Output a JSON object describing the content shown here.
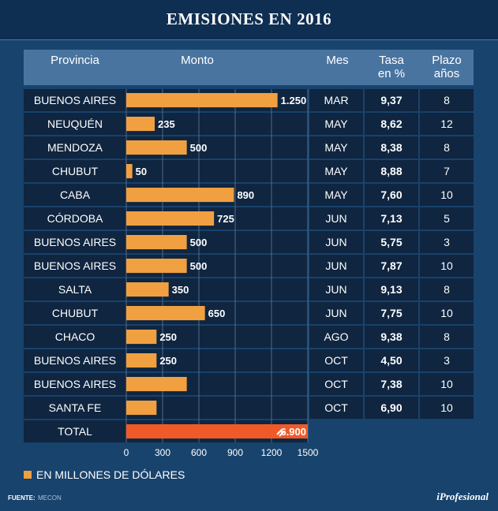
{
  "title": "EMISIONES EN 2016",
  "headers": {
    "provincia": "Provincia",
    "monto": "Monto",
    "mes": "Mes",
    "tasa_line1": "Tasa",
    "tasa_line2": "en %",
    "plazo_line1": "Plazo",
    "plazo_line2": "años"
  },
  "legend": "EN MILLONES DE DÓLARES",
  "source_label": "FUENTE:",
  "source": "MECON",
  "brand": "iProfesional",
  "colors": {
    "bar": "#f0a040",
    "total_bar": "#f05a28",
    "background": "#18436d",
    "row": "#0f2540",
    "header": "#4a74a0"
  },
  "chart_data": {
    "type": "bar",
    "orientation": "horizontal",
    "title": "EMISIONES EN 2016",
    "categories": [
      "BUENOS AIRES",
      "NEUQUÉN",
      "MENDOZA",
      "CHUBUT",
      "CABA",
      "CÓRDOBA",
      "BUENOS AIRES",
      "BUENOS AIRES",
      "SALTA",
      "CHUBUT",
      "CHACO",
      "BUENOS AIRES",
      "BUENOS AIRES",
      "SANTA FE"
    ],
    "values": [
      1250,
      235,
      500,
      50,
      890,
      725,
      500,
      500,
      350,
      650,
      250,
      250,
      500,
      250
    ],
    "value_labels": [
      "1.250",
      "235",
      "500",
      "50",
      "890",
      "725",
      "500",
      "500",
      "350",
      "650",
      "250",
      "250",
      "",
      ""
    ],
    "mes": [
      "MAR",
      "MAY",
      "MAY",
      "MAY",
      "MAY",
      "JUN",
      "JUN",
      "JUN",
      "JUN",
      "JUN",
      "AGO",
      "OCT",
      "OCT",
      "OCT"
    ],
    "tasa": [
      "9,37",
      "8,62",
      "8,38",
      "8,88",
      "7,60",
      "7,13",
      "5,75",
      "7,87",
      "9,13",
      "7,75",
      "9,38",
      "4,50",
      "7,38",
      "6,90"
    ],
    "plazo": [
      "8",
      "12",
      "8",
      "7",
      "10",
      "5",
      "3",
      "10",
      "8",
      "10",
      "8",
      "3",
      "10",
      "10"
    ],
    "total": {
      "label": "TOTAL",
      "value": 6900,
      "value_label": "6.900"
    },
    "xlim": [
      0,
      1500
    ],
    "xticks": [
      0,
      300,
      600,
      900,
      1200,
      1500
    ],
    "grid": true,
    "unit": "EN MILLONES DE DÓLARES"
  }
}
